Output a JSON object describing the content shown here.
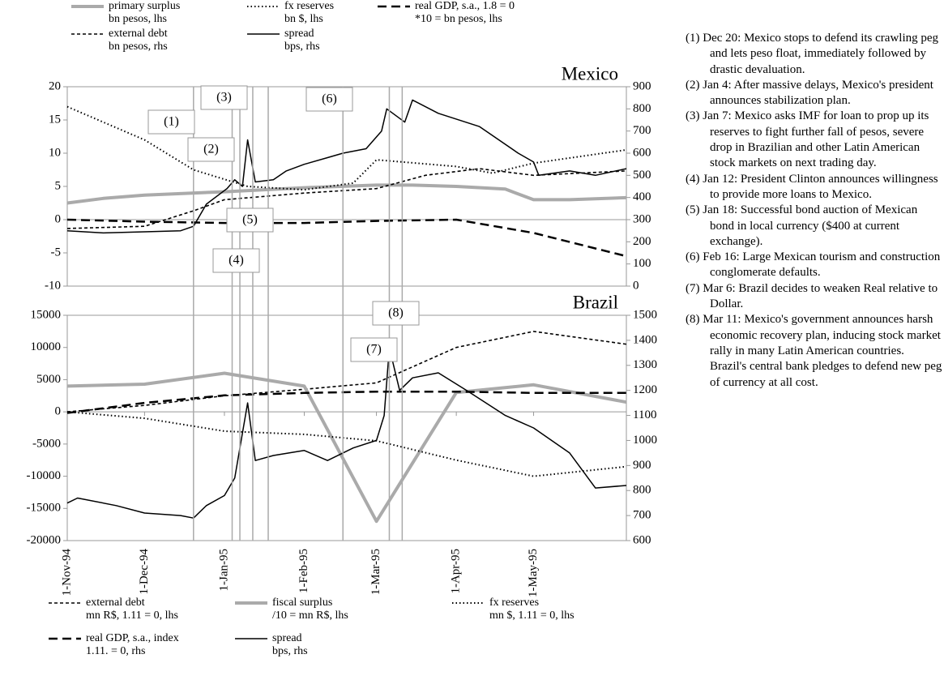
{
  "chart_data": [
    {
      "type": "line",
      "title": "Mexico",
      "xlim": [
        "1994-11-01",
        "1995-06-06"
      ],
      "ylim": [
        -10,
        20
      ],
      "yticks": [
        -10,
        -5,
        0,
        5,
        10,
        15,
        20
      ],
      "y2lim": [
        0,
        900
      ],
      "y2ticks": [
        0,
        100,
        200,
        300,
        400,
        500,
        600,
        700,
        800,
        900
      ],
      "series": [
        {
          "name": "primary surplus",
          "note": "bn pesos, lhs",
          "color": "#aaaaaa",
          "style": "thick",
          "x": [
            "1994-11-01",
            "1994-11-15",
            "1994-12-01",
            "1995-01-01",
            "1995-02-01",
            "1995-03-01",
            "1995-03-15",
            "1995-04-01",
            "1995-04-20",
            "1995-05-01",
            "1995-05-15",
            "1995-06-06"
          ],
          "values": [
            2.5,
            3.2,
            3.7,
            4.2,
            4.8,
            5.2,
            5.2,
            5.0,
            4.6,
            3.0,
            3.0,
            3.3
          ]
        },
        {
          "name": "fx reserves",
          "note": "bn $, lhs",
          "color": "#000000",
          "style": "dotted",
          "x": [
            "1994-11-01",
            "1994-12-01",
            "1994-12-20",
            "1995-01-10",
            "1995-02-01",
            "1995-02-20",
            "1995-03-01",
            "1995-04-01",
            "1995-04-15",
            "1995-05-01",
            "1995-06-06"
          ],
          "values": [
            17,
            12,
            7.5,
            5,
            4.5,
            5.5,
            9,
            8,
            7,
            8.5,
            10.5
          ]
        },
        {
          "name": "real GDP, s.a., 1.8 = 0",
          "note": "*10 = bn pesos, lhs",
          "color": "#000000",
          "style": "long-dash",
          "x": [
            "1994-11-01",
            "1994-12-01",
            "1995-01-01",
            "1995-02-01",
            "1995-03-01",
            "1995-04-01",
            "1995-05-01",
            "1995-06-06"
          ],
          "values": [
            0,
            -0.3,
            -0.5,
            -0.5,
            -0.2,
            0,
            -2,
            -5.5
          ]
        },
        {
          "name": "external debt",
          "note": "bn pesos, rhs",
          "color": "#000000",
          "style": "short-dash",
          "axis": "y2",
          "x": [
            "1994-11-01",
            "1994-12-01",
            "1994-12-20",
            "1995-01-01",
            "1995-02-01",
            "1995-03-01",
            "1995-03-20",
            "1995-04-10",
            "1995-05-01",
            "1995-06-06"
          ],
          "values": [
            260,
            270,
            340,
            390,
            420,
            440,
            500,
            530,
            500,
            520
          ]
        },
        {
          "name": "spread",
          "note": "bps, rhs",
          "color": "#000000",
          "style": "solid",
          "axis": "y2",
          "x": [
            "1994-11-01",
            "1994-11-15",
            "1994-12-01",
            "1994-12-15",
            "1994-12-20",
            "1994-12-25",
            "1995-01-02",
            "1995-01-05",
            "1995-01-08",
            "1995-01-10",
            "1995-01-13",
            "1995-01-20",
            "1995-01-25",
            "1995-02-01",
            "1995-02-10",
            "1995-02-16",
            "1995-02-25",
            "1995-03-03",
            "1995-03-05",
            "1995-03-12",
            "1995-03-15",
            "1995-03-25",
            "1995-04-10",
            "1995-04-25",
            "1995-05-01",
            "1995-05-03",
            "1995-05-15",
            "1995-05-25",
            "1995-06-06"
          ],
          "values": [
            250,
            240,
            245,
            250,
            270,
            370,
            440,
            480,
            450,
            660,
            470,
            480,
            520,
            550,
            580,
            600,
            620,
            700,
            800,
            740,
            840,
            780,
            720,
            600,
            560,
            500,
            520,
            500,
            530
          ]
        }
      ]
    },
    {
      "type": "line",
      "title": "Brazil",
      "xlim": [
        "1994-11-01",
        "1995-06-06"
      ],
      "xticks": [
        {
          "value": "1994-11-01",
          "label": "1-Nov-94"
        },
        {
          "value": "1994-12-01",
          "label": "1-Dec-94"
        },
        {
          "value": "1995-01-01",
          "label": "1-Jan-95"
        },
        {
          "value": "1995-02-01",
          "label": "1-Feb-95"
        },
        {
          "value": "1995-03-01",
          "label": "1-Mar-95"
        },
        {
          "value": "1995-04-01",
          "label": "1-Apr-95"
        },
        {
          "value": "1995-05-01",
          "label": "1-May-95"
        }
      ],
      "ylim": [
        -20000,
        15000
      ],
      "yticks": [
        -20000,
        -15000,
        -10000,
        -5000,
        0,
        5000,
        10000,
        15000
      ],
      "y2lim": [
        600,
        1500
      ],
      "y2ticks": [
        600,
        700,
        800,
        900,
        1000,
        1100,
        1200,
        1300,
        1400,
        1500
      ],
      "series": [
        {
          "name": "external debt",
          "note": "mn R$, 1.11 = 0, lhs",
          "color": "#000000",
          "style": "short-dash",
          "x": [
            "1994-11-01",
            "1994-12-01",
            "1995-01-01",
            "1995-02-01",
            "1995-03-01",
            "1995-04-01",
            "1995-05-01",
            "1995-06-06"
          ],
          "values": [
            0,
            1000,
            2500,
            3500,
            4500,
            10000,
            12500,
            10500
          ]
        },
        {
          "name": "fiscal surplus",
          "note": "/10 = mn R$, lhs",
          "color": "#aaaaaa",
          "style": "thick",
          "x": [
            "1994-11-01",
            "1994-12-01",
            "1995-01-01",
            "1995-02-01",
            "1995-03-01",
            "1995-04-01",
            "1995-05-01",
            "1995-06-06"
          ],
          "values": [
            4000,
            4300,
            6000,
            4000,
            -17000,
            3000,
            4200,
            1500
          ]
        },
        {
          "name": "fx reserves",
          "note": "mn $, 1.11 = 0, lhs",
          "color": "#000000",
          "style": "dotted",
          "x": [
            "1994-11-01",
            "1994-12-01",
            "1995-01-01",
            "1995-02-01",
            "1995-03-01",
            "1995-04-01",
            "1995-05-01",
            "1995-06-06"
          ],
          "values": [
            0,
            -1000,
            -3000,
            -3500,
            -4500,
            -7500,
            -10000,
            -8500
          ]
        },
        {
          "name": "real GDP, s.a., index",
          "note": "1.11. = 0, rhs",
          "color": "#000000",
          "style": "long-dash",
          "axis": "y2",
          "x": [
            "1994-11-01",
            "1994-12-01",
            "1995-01-01",
            "1995-02-01",
            "1995-03-01",
            "1995-04-01",
            "1995-05-01",
            "1995-06-06"
          ],
          "values": [
            1110,
            1150,
            1180,
            1190,
            1195,
            1195,
            1190,
            1190
          ]
        },
        {
          "name": "spread",
          "note": "bps, rhs",
          "color": "#000000",
          "style": "solid",
          "axis": "y2",
          "x": [
            "1994-11-01",
            "1994-11-05",
            "1994-11-20",
            "1994-12-01",
            "1994-12-15",
            "1994-12-20",
            "1994-12-25",
            "1995-01-01",
            "1995-01-05",
            "1995-01-10",
            "1995-01-13",
            "1995-01-20",
            "1995-02-01",
            "1995-02-10",
            "1995-02-20",
            "1995-03-01",
            "1995-03-04",
            "1995-03-06",
            "1995-03-10",
            "1995-03-15",
            "1995-03-25",
            "1995-04-05",
            "1995-04-20",
            "1995-05-01",
            "1995-05-15",
            "1995-05-25",
            "1995-06-06"
          ],
          "values": [
            750,
            770,
            740,
            710,
            700,
            690,
            740,
            780,
            850,
            1150,
            920,
            940,
            960,
            920,
            970,
            1000,
            1100,
            1370,
            1200,
            1250,
            1270,
            1200,
            1100,
            1050,
            950,
            810,
            820
          ]
        }
      ]
    }
  ],
  "events": [
    {
      "label": "(1)",
      "date": "1994-12-20"
    },
    {
      "label": "(2)",
      "date": "1995-01-04"
    },
    {
      "label": "(3)",
      "date": "1995-01-07"
    },
    {
      "label": "(4)",
      "date": "1995-01-12"
    },
    {
      "label": "(5)",
      "date": "1995-01-18"
    },
    {
      "label": "(6)",
      "date": "1995-02-16"
    },
    {
      "label": "(7)",
      "date": "1995-03-06"
    },
    {
      "label": "(8)",
      "date": "1995-03-11"
    }
  ],
  "notes": [
    {
      "label": "(1)",
      "text": "Dec 20: Mexico stops to defend its crawling peg and lets peso float, immediately followed by drastic devaluation."
    },
    {
      "label": "(2)",
      "text": "Jan 4: After massive delays, Mexico's president announces stabilization plan."
    },
    {
      "label": "(3)",
      "text": "Jan 7: Mexico asks IMF for loan to prop up its reserves to fight further fall of pesos, severe drop in Brazilian and other Latin American stock markets on next trading day."
    },
    {
      "label": "(4)",
      "text": "Jan 12: President Clinton announces willingness to provide more loans to Mexico."
    },
    {
      "label": "(5)",
      "text": "Jan 18: Successful bond auction of Mexican bond in local currency ($400 at current exchange)."
    },
    {
      "label": "(6)",
      "text": "Feb 16: Large Mexican tourism and construction conglomerate defaults."
    },
    {
      "label": "(7)",
      "text": "Mar 6: Brazil  decides  to weaken Real relative to Dollar."
    },
    {
      "label": "(8)",
      "text": "Mar 11: Mexico's government announces harsh economic recovery plan, inducing stock market rally in many Latin American countries."
    }
  ],
  "notes_extra": "Brazil's central bank pledges to defend new peg of currency at all cost."
}
